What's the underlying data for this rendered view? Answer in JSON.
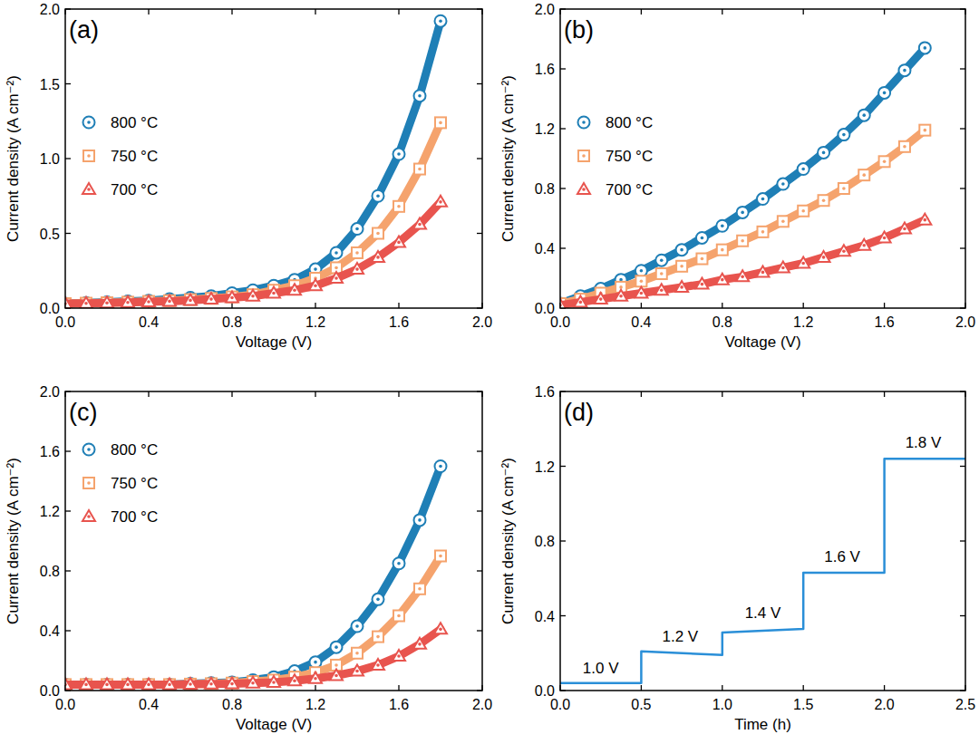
{
  "chart_data": [
    {
      "type": "scatter",
      "panel": "(a)",
      "x_label": "Voltage (V)",
      "y_label": "Current density (A cm⁻²)",
      "xlim": [
        0,
        2
      ],
      "ylim": [
        0,
        2
      ],
      "xticks": [
        {
          "value": 0,
          "label": "0.0"
        },
        {
          "value": 0.4,
          "label": "0.4"
        },
        {
          "value": 0.8,
          "label": "0.8"
        },
        {
          "value": 1.2,
          "label": "1.2"
        },
        {
          "value": 1.6,
          "label": "1.6"
        },
        {
          "value": 2,
          "label": "2.0"
        }
      ],
      "yticks": [
        {
          "value": 0,
          "label": "0.0"
        },
        {
          "value": 0.5,
          "label": "0.5"
        },
        {
          "value": 1,
          "label": "1.0"
        },
        {
          "value": 1.5,
          "label": "1.5"
        },
        {
          "value": 2,
          "label": "2.0"
        }
      ],
      "legend": "upper left",
      "x": [
        0,
        0.1,
        0.2,
        0.3,
        0.4,
        0.5,
        0.6,
        0.7,
        0.8,
        0.9,
        1.0,
        1.1,
        1.2,
        1.3,
        1.4,
        1.5,
        1.6,
        1.7,
        1.8
      ],
      "series": [
        {
          "name": "800 °C",
          "color": "#1f7fb6",
          "marker": "circle",
          "values": [
            0.03,
            0.035,
            0.04,
            0.045,
            0.05,
            0.06,
            0.07,
            0.08,
            0.1,
            0.12,
            0.15,
            0.19,
            0.26,
            0.37,
            0.53,
            0.75,
            1.03,
            1.42,
            1.92
          ]
        },
        {
          "name": "750 °C",
          "color": "#f5a36d",
          "marker": "square",
          "values": [
            0.03,
            0.033,
            0.036,
            0.04,
            0.045,
            0.05,
            0.057,
            0.065,
            0.075,
            0.09,
            0.12,
            0.15,
            0.2,
            0.27,
            0.37,
            0.5,
            0.68,
            0.93,
            1.24
          ]
        },
        {
          "name": "700 °C",
          "color": "#e8544e",
          "marker": "triangle",
          "values": [
            0.03,
            0.032,
            0.035,
            0.038,
            0.042,
            0.046,
            0.052,
            0.06,
            0.07,
            0.08,
            0.1,
            0.12,
            0.15,
            0.2,
            0.26,
            0.34,
            0.44,
            0.56,
            0.71
          ]
        }
      ]
    },
    {
      "type": "scatter",
      "panel": "(b)",
      "x_label": "Voltage (V)",
      "y_label": "Current density (A cm⁻²)",
      "xlim": [
        0,
        2
      ],
      "ylim": [
        0,
        2
      ],
      "xticks": [
        {
          "value": 0,
          "label": "0.0"
        },
        {
          "value": 0.4,
          "label": "0.4"
        },
        {
          "value": 0.8,
          "label": "0.8"
        },
        {
          "value": 1.2,
          "label": "1.2"
        },
        {
          "value": 1.6,
          "label": "1.6"
        },
        {
          "value": 2,
          "label": "2.0"
        }
      ],
      "yticks": [
        {
          "value": 0,
          "label": "0.0"
        },
        {
          "value": 0.4,
          "label": "0.4"
        },
        {
          "value": 0.8,
          "label": "0.8"
        },
        {
          "value": 1.2,
          "label": "1.2"
        },
        {
          "value": 1.6,
          "label": "1.6"
        },
        {
          "value": 2,
          "label": "2.0"
        }
      ],
      "legend": "upper left",
      "x": [
        0,
        0.1,
        0.2,
        0.3,
        0.4,
        0.5,
        0.6,
        0.7,
        0.8,
        0.9,
        1.0,
        1.1,
        1.2,
        1.3,
        1.4,
        1.5,
        1.6,
        1.7,
        1.8
      ],
      "series": [
        {
          "name": "800 °C",
          "color": "#1f7fb6",
          "marker": "circle",
          "values": [
            0.03,
            0.08,
            0.13,
            0.19,
            0.25,
            0.32,
            0.39,
            0.47,
            0.55,
            0.64,
            0.73,
            0.83,
            0.93,
            1.04,
            1.16,
            1.29,
            1.44,
            1.59,
            1.74
          ]
        },
        {
          "name": "750 °C",
          "color": "#f5a36d",
          "marker": "square",
          "values": [
            0.03,
            0.06,
            0.1,
            0.14,
            0.18,
            0.23,
            0.28,
            0.33,
            0.39,
            0.45,
            0.51,
            0.58,
            0.65,
            0.72,
            0.8,
            0.89,
            0.98,
            1.08,
            1.19
          ]
        },
        {
          "name": "700 °C",
          "color": "#e8544e",
          "marker": "triangle",
          "values": [
            0.02,
            0.04,
            0.06,
            0.08,
            0.1,
            0.12,
            0.14,
            0.16,
            0.19,
            0.21,
            0.24,
            0.27,
            0.3,
            0.34,
            0.38,
            0.42,
            0.47,
            0.53,
            0.59
          ]
        }
      ]
    },
    {
      "type": "scatter",
      "panel": "(c)",
      "x_label": "Voltage (V)",
      "y_label": "Current density (A cm⁻²)",
      "xlim": [
        0,
        2
      ],
      "ylim": [
        0,
        2
      ],
      "xticks": [
        {
          "value": 0,
          "label": "0.0"
        },
        {
          "value": 0.4,
          "label": "0.4"
        },
        {
          "value": 0.8,
          "label": "0.8"
        },
        {
          "value": 1.2,
          "label": "1.2"
        },
        {
          "value": 1.6,
          "label": "1.6"
        },
        {
          "value": 2,
          "label": "2.0"
        }
      ],
      "yticks": [
        {
          "value": 0,
          "label": "0.0"
        },
        {
          "value": 0.4,
          "label": "0.4"
        },
        {
          "value": 0.8,
          "label": "0.8"
        },
        {
          "value": 1.2,
          "label": "1.2"
        },
        {
          "value": 1.6,
          "label": "1.6"
        },
        {
          "value": 2,
          "label": "2.0"
        }
      ],
      "legend": "upper left",
      "x": [
        0,
        0.1,
        0.2,
        0.3,
        0.4,
        0.5,
        0.6,
        0.7,
        0.8,
        0.9,
        1.0,
        1.1,
        1.2,
        1.3,
        1.4,
        1.5,
        1.6,
        1.7,
        1.8
      ],
      "series": [
        {
          "name": "800 °C",
          "color": "#1f7fb6",
          "marker": "circle",
          "values": [
            0.04,
            0.04,
            0.04,
            0.04,
            0.04,
            0.04,
            0.045,
            0.05,
            0.055,
            0.07,
            0.09,
            0.13,
            0.19,
            0.29,
            0.43,
            0.61,
            0.85,
            1.14,
            1.5
          ]
        },
        {
          "name": "750 °C",
          "color": "#f5a36d",
          "marker": "square",
          "values": [
            0.04,
            0.04,
            0.04,
            0.04,
            0.04,
            0.04,
            0.043,
            0.046,
            0.05,
            0.06,
            0.07,
            0.09,
            0.12,
            0.17,
            0.25,
            0.36,
            0.5,
            0.68,
            0.9
          ]
        },
        {
          "name": "700 °C",
          "color": "#e8544e",
          "marker": "triangle",
          "values": [
            0.04,
            0.04,
            0.04,
            0.04,
            0.04,
            0.04,
            0.042,
            0.044,
            0.045,
            0.05,
            0.055,
            0.065,
            0.08,
            0.1,
            0.13,
            0.17,
            0.23,
            0.31,
            0.41
          ]
        }
      ]
    },
    {
      "type": "line",
      "panel": "(d)",
      "x_label": "Time (h)",
      "y_label": "Current density (A cm⁻²)",
      "xlim": [
        0,
        2.5
      ],
      "ylim": [
        0,
        1.6
      ],
      "xticks": [
        {
          "value": 0,
          "label": "0.0"
        },
        {
          "value": 0.5,
          "label": "0.5"
        },
        {
          "value": 1,
          "label": "1.0"
        },
        {
          "value": 1.5,
          "label": "1.5"
        },
        {
          "value": 2,
          "label": "2.0"
        },
        {
          "value": 2.5,
          "label": "2.5"
        }
      ],
      "yticks": [
        {
          "value": 0,
          "label": "0.0"
        },
        {
          "value": 0.4,
          "label": "0.4"
        },
        {
          "value": 0.8,
          "label": "0.8"
        },
        {
          "value": 1.2,
          "label": "1.2"
        },
        {
          "value": 1.6,
          "label": "1.6"
        }
      ],
      "x": [
        0,
        0.5,
        0.5,
        1.0,
        1.0,
        1.5,
        1.5,
        2.0,
        2.0,
        2.5
      ],
      "series": [
        {
          "color": "#2a8fd8",
          "values": [
            0.04,
            0.04,
            0.21,
            0.19,
            0.31,
            0.33,
            0.63,
            0.63,
            1.24,
            1.24
          ]
        }
      ],
      "annotations": [
        {
          "text": "1.0 V",
          "x": 0.25,
          "y": 0.09
        },
        {
          "text": "1.2 V",
          "x": 0.74,
          "y": 0.26
        },
        {
          "text": "1.4 V",
          "x": 1.25,
          "y": 0.39
        },
        {
          "text": "1.6 V",
          "x": 1.74,
          "y": 0.69
        },
        {
          "text": "1.8 V",
          "x": 2.24,
          "y": 1.3
        }
      ]
    }
  ]
}
